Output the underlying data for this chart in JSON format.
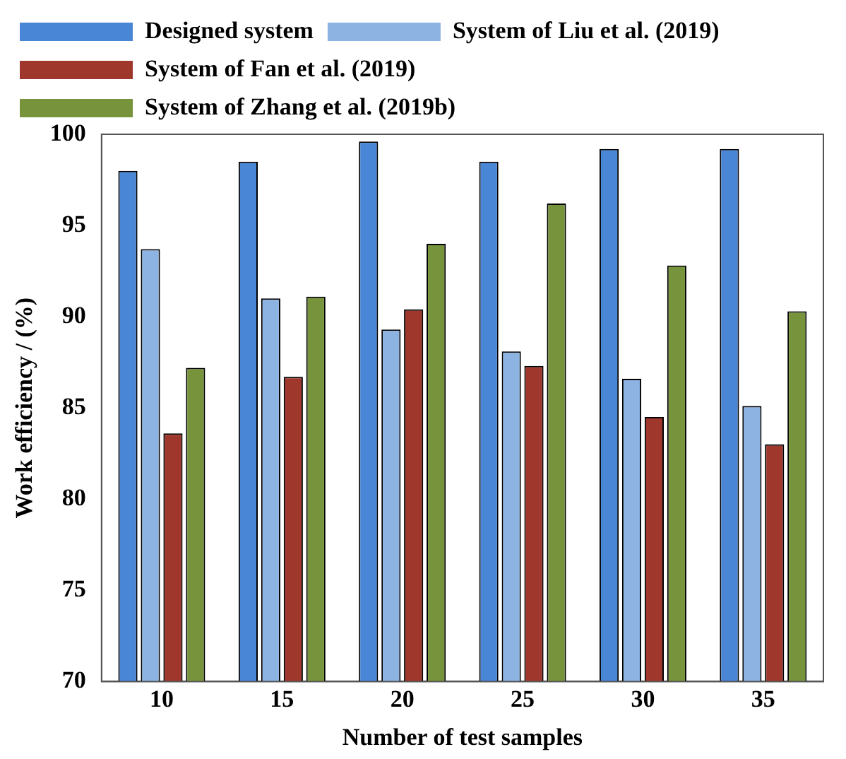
{
  "chart_data": {
    "type": "bar",
    "xlabel": "Number of test samples",
    "ylabel": "Work efficiency / (%)",
    "categories": [
      "10",
      "15",
      "20",
      "25",
      "30",
      "35"
    ],
    "series": [
      {
        "name": "Designed system",
        "color": "#4a86d6",
        "values": [
          98.0,
          98.5,
          99.6,
          98.5,
          99.2,
          99.2
        ]
      },
      {
        "name": "System of Liu et al. (2019)",
        "color": "#8db3e2",
        "values": [
          93.7,
          91.0,
          89.3,
          88.1,
          86.6,
          85.1
        ]
      },
      {
        "name": "System of Fan et al. (2019)",
        "color": "#a0372d",
        "values": [
          83.6,
          86.7,
          90.4,
          87.3,
          84.5,
          83.0
        ]
      },
      {
        "name": "System of Zhang et al. (2019b)",
        "color": "#77933c",
        "values": [
          87.2,
          91.1,
          94.0,
          96.2,
          92.8,
          90.3
        ]
      }
    ],
    "ylim": [
      70,
      100
    ],
    "yticks": [
      70,
      75,
      80,
      85,
      90,
      95,
      100
    ],
    "grid": false,
    "legend": "top"
  }
}
